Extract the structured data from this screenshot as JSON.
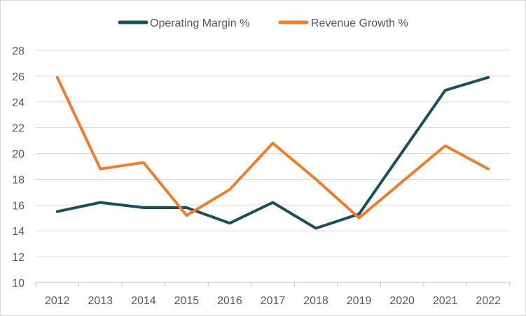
{
  "chart_data": {
    "type": "line",
    "title": "",
    "xlabel": "",
    "ylabel": "",
    "categories": [
      "2012",
      "2013",
      "2014",
      "2015",
      "2016",
      "2017",
      "2018",
      "2019",
      "2020",
      "2021",
      "2022"
    ],
    "series": [
      {
        "name": "Operating Margin %",
        "color": "#1d4f5a",
        "values": [
          15.5,
          16.2,
          15.8,
          15.8,
          14.6,
          16.2,
          14.2,
          15.3,
          20.1,
          24.9,
          25.9
        ]
      },
      {
        "name": "Revenue Growth %",
        "color": "#ed7d31",
        "values": [
          25.9,
          18.8,
          19.3,
          15.2,
          17.2,
          20.8,
          18.0,
          15.0,
          17.8,
          20.6,
          18.8
        ]
      }
    ],
    "ylim": [
      10,
      28
    ],
    "yticks": [
      10,
      12,
      14,
      16,
      18,
      20,
      22,
      24,
      26,
      28
    ],
    "grid": "horizontal",
    "legend_position": "top-center"
  }
}
